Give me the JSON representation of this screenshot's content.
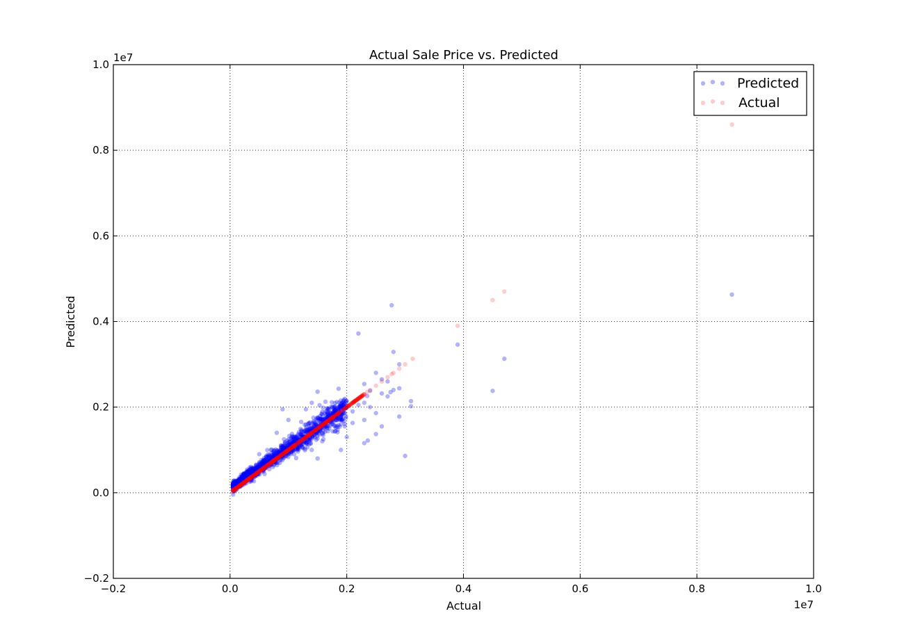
{
  "chart_data": {
    "type": "scatter",
    "title": "Actual Sale Price vs. Predicted",
    "xlabel": "Actual",
    "ylabel": "Predicted",
    "x_offset_label": "1e7",
    "y_offset_label": "1e7",
    "xlim": [
      -0.2,
      1.0
    ],
    "ylim": [
      -0.2,
      1.0
    ],
    "x_ticks": [
      -0.2,
      0.0,
      0.2,
      0.4,
      0.6,
      0.8,
      1.0
    ],
    "y_ticks": [
      -0.2,
      0.0,
      0.2,
      0.4,
      0.6,
      0.8,
      1.0
    ],
    "x_tick_labels": [
      "−0.2",
      "0.0",
      "0.2",
      "0.4",
      "0.6",
      "0.8",
      "1.0"
    ],
    "y_tick_labels": [
      "−0.2",
      "0.0",
      "0.2",
      "0.4",
      "0.6",
      "0.8",
      "1.0"
    ],
    "grid": true,
    "legend_position": "top-right",
    "units_note": "axis values in units of 1e7",
    "series": [
      {
        "name": "Predicted",
        "color": "#0000ff",
        "opacity": 0.3,
        "points": [
          [
            0.86,
            0.463
          ],
          [
            0.277,
            0.438
          ],
          [
            0.22,
            0.372
          ],
          [
            0.39,
            0.346
          ],
          [
            0.47,
            0.313
          ],
          [
            0.28,
            0.329
          ],
          [
            0.45,
            0.238
          ],
          [
            0.3,
            0.086
          ],
          [
            0.29,
            0.178
          ],
          [
            0.31,
            0.214
          ],
          [
            0.29,
            0.244
          ],
          [
            0.29,
            0.3
          ],
          [
            0.26,
            0.265
          ],
          [
            0.25,
            0.28
          ],
          [
            0.27,
            0.26
          ],
          [
            0.24,
            0.238
          ],
          [
            0.23,
            0.254
          ],
          [
            0.22,
            0.205
          ],
          [
            0.25,
            0.186
          ],
          [
            0.23,
            0.17
          ],
          [
            0.21,
            0.163
          ],
          [
            0.19,
            0.16
          ],
          [
            0.2,
            0.13
          ],
          [
            0.17,
            0.15
          ],
          [
            0.16,
            0.125
          ],
          [
            0.15,
            0.236
          ],
          [
            0.14,
            0.21
          ],
          [
            0.186,
            0.243
          ],
          [
            0.195,
            0.196
          ],
          [
            0.21,
            0.19
          ],
          [
            0.23,
            0.116
          ],
          [
            0.23,
            0.21
          ],
          [
            0.26,
            0.232
          ],
          [
            0.26,
            0.155
          ],
          [
            0.235,
            0.226
          ],
          [
            0.236,
            0.122
          ],
          [
            0.25,
            0.137
          ],
          [
            0.27,
            0.225
          ],
          [
            0.275,
            0.235
          ],
          [
            0.28,
            0.24
          ],
          [
            0.31,
            0.202
          ],
          [
            0.24,
            0.2
          ],
          [
            0.19,
            0.1
          ],
          [
            0.13,
            0.195
          ],
          [
            0.1,
            0.17
          ],
          [
            0.09,
            0.195
          ],
          [
            0.08,
            0.14
          ],
          [
            0.05,
            0.09
          ],
          [
            0.07,
            0.1
          ],
          [
            0.11,
            0.09
          ],
          [
            0.14,
            0.1
          ],
          [
            0.15,
            0.08
          ]
        ]
      },
      {
        "name": "Actual",
        "color": "#ff0000",
        "opacity": 0.2,
        "points": [
          [
            0.86,
            0.86
          ],
          [
            0.47,
            0.47
          ],
          [
            0.45,
            0.45
          ],
          [
            0.39,
            0.39
          ],
          [
            0.313,
            0.313
          ],
          [
            0.3,
            0.3
          ],
          [
            0.29,
            0.29
          ],
          [
            0.28,
            0.28
          ],
          [
            0.277,
            0.277
          ],
          [
            0.27,
            0.27
          ],
          [
            0.26,
            0.26
          ],
          [
            0.25,
            0.25
          ],
          [
            0.24,
            0.24
          ],
          [
            0.235,
            0.235
          ],
          [
            0.23,
            0.23
          ]
        ]
      }
    ],
    "dense_band": {
      "predicted_range_x": [
        0.005,
        0.2
      ],
      "actual_range_x": [
        0.005,
        0.23
      ]
    }
  }
}
